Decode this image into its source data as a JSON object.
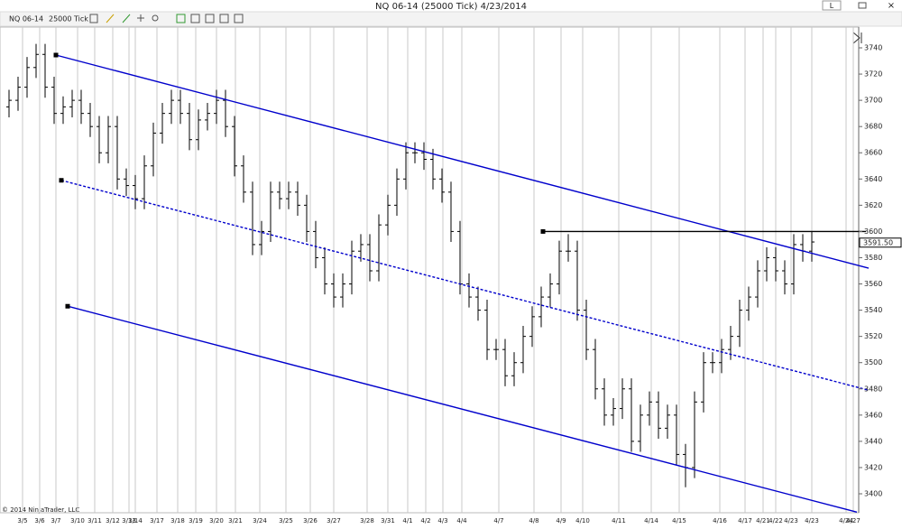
{
  "window": {
    "title": "NQ 06-14 (25000 Tick)  4/23/2014",
    "button": "L"
  },
  "toolbar": {
    "instrument": "NQ 06-14",
    "interval": "25000 Tick"
  },
  "copyright": "© 2014 NinjaTrader, LLC",
  "chart_data": {
    "type": "ohlc",
    "color": "#000000",
    "grid": true,
    "xlim": [
      -1,
      94.2
    ],
    "ylim": [
      3385.55,
      3755.83
    ],
    "yticks": [
      3400,
      3420,
      3440,
      3460,
      3480,
      3500,
      3520,
      3540,
      3560,
      3580,
      3600,
      3620,
      3640,
      3660,
      3680,
      3700,
      3720,
      3740
    ],
    "xticks": [
      {
        "value": 1.5,
        "label": "3/5"
      },
      {
        "value": 3.4,
        "label": "3/6"
      },
      {
        "value": 5.2,
        "label": "3/7"
      },
      {
        "value": 7.6,
        "label": "3/10"
      },
      {
        "value": 9.5,
        "label": "3/11"
      },
      {
        "value": 11.5,
        "label": "3/12"
      },
      {
        "value": 13.3,
        "label": "3/13"
      },
      {
        "value": 14,
        "label": "3/14"
      },
      {
        "value": 16.4,
        "label": "3/17"
      },
      {
        "value": 18.7,
        "label": "3/18"
      },
      {
        "value": 20.7,
        "label": "3/19"
      },
      {
        "value": 23,
        "label": "3/20"
      },
      {
        "value": 25.1,
        "label": "3/21"
      },
      {
        "value": 27.8,
        "label": "3/24"
      },
      {
        "value": 30.7,
        "label": "3/25"
      },
      {
        "value": 33.4,
        "label": "3/26"
      },
      {
        "value": 36,
        "label": "3/27"
      },
      {
        "value": 39.7,
        "label": "3/28"
      },
      {
        "value": 42,
        "label": "3/31"
      },
      {
        "value": 44.2,
        "label": "4/1"
      },
      {
        "value": 46.2,
        "label": "4/2"
      },
      {
        "value": 48.1,
        "label": "4/3"
      },
      {
        "value": 50.2,
        "label": "4/4"
      },
      {
        "value": 54.3,
        "label": "4/7"
      },
      {
        "value": 58.2,
        "label": "4/8"
      },
      {
        "value": 61.2,
        "label": "4/9"
      },
      {
        "value": 63.6,
        "label": "4/10"
      },
      {
        "value": 67.6,
        "label": "4/11"
      },
      {
        "value": 71.2,
        "label": "4/14"
      },
      {
        "value": 74.3,
        "label": "4/15"
      },
      {
        "value": 78.8,
        "label": "4/16"
      },
      {
        "value": 81.6,
        "label": "4/17"
      },
      {
        "value": 83.6,
        "label": "4/21"
      },
      {
        "value": 85,
        "label": "4/22"
      },
      {
        "value": 86.7,
        "label": "4/23"
      },
      {
        "value": 89,
        "label": "4/23"
      },
      {
        "value": 92.8,
        "label": "4/24"
      },
      {
        "value": 93.6,
        "label": "4/27"
      }
    ],
    "last_price": {
      "value": 3591.5,
      "label": "3591.50"
    },
    "lines": [
      {
        "color": "#0000cc",
        "dashed": false,
        "points": [
          [
            5.2,
            3734.5
          ],
          [
            95.3,
            3572
          ]
        ]
      },
      {
        "color": "#0000cc",
        "dashed": true,
        "points": [
          [
            5.8,
            3639
          ],
          [
            95.3,
            3479
          ]
        ]
      },
      {
        "color": "#0000cc",
        "dashed": false,
        "points": [
          [
            6.5,
            3543
          ],
          [
            94,
            3386
          ]
        ]
      },
      {
        "color": "#000000",
        "dashed": false,
        "points": [
          [
            59.2,
            3600
          ],
          [
            95,
            3600
          ]
        ]
      }
    ],
    "bars": [
      [
        3695,
        3708,
        3687,
        3700
      ],
      [
        3700,
        3718,
        3692,
        3710
      ],
      [
        3710,
        3733,
        3702,
        3725
      ],
      [
        3725,
        3743,
        3717,
        3735
      ],
      [
        3735,
        3743,
        3702,
        3710
      ],
      [
        3710,
        3718,
        3682,
        3690
      ],
      [
        3690,
        3703,
        3682,
        3695
      ],
      [
        3695,
        3708,
        3687,
        3700
      ],
      [
        3700,
        3708,
        3682,
        3690
      ],
      [
        3690,
        3698,
        3672,
        3680
      ],
      [
        3680,
        3688,
        3652,
        3660
      ],
      [
        3660,
        3688,
        3652,
        3680
      ],
      [
        3680,
        3688,
        3632,
        3640
      ],
      [
        3640,
        3648,
        3627,
        3635
      ],
      [
        3635,
        3643,
        3617,
        3625
      ],
      [
        3625,
        3658,
        3617,
        3650
      ],
      [
        3650,
        3683,
        3642,
        3675
      ],
      [
        3675,
        3698,
        3667,
        3690
      ],
      [
        3690,
        3708,
        3682,
        3700
      ],
      [
        3700,
        3708,
        3682,
        3690
      ],
      [
        3690,
        3698,
        3662,
        3670
      ],
      [
        3670,
        3693,
        3662,
        3685
      ],
      [
        3685,
        3698,
        3677,
        3690
      ],
      [
        3690,
        3708,
        3682,
        3700
      ],
      [
        3700,
        3708,
        3672,
        3680
      ],
      [
        3680,
        3688,
        3642,
        3650
      ],
      [
        3650,
        3658,
        3622,
        3630
      ],
      [
        3630,
        3638,
        3582,
        3590
      ],
      [
        3590,
        3608,
        3582,
        3600
      ],
      [
        3600,
        3638,
        3592,
        3630
      ],
      [
        3630,
        3638,
        3617,
        3625
      ],
      [
        3625,
        3638,
        3617,
        3630
      ],
      [
        3630,
        3638,
        3612,
        3620
      ],
      [
        3620,
        3628,
        3592,
        3600
      ],
      [
        3600,
        3608,
        3572,
        3580
      ],
      [
        3580,
        3588,
        3552,
        3560
      ],
      [
        3560,
        3568,
        3542,
        3550
      ],
      [
        3550,
        3568,
        3542,
        3560
      ],
      [
        3560,
        3593,
        3552,
        3585
      ],
      [
        3585,
        3598,
        3577,
        3590
      ],
      [
        3590,
        3598,
        3562,
        3570
      ],
      [
        3570,
        3613,
        3562,
        3605
      ],
      [
        3605,
        3628,
        3597,
        3620
      ],
      [
        3620,
        3648,
        3612,
        3640
      ],
      [
        3640,
        3668,
        3632,
        3660
      ],
      [
        3660,
        3668,
        3652,
        3660
      ],
      [
        3660,
        3668,
        3647,
        3655
      ],
      [
        3655,
        3663,
        3632,
        3640
      ],
      [
        3640,
        3648,
        3622,
        3630
      ],
      [
        3630,
        3638,
        3592,
        3600
      ],
      [
        3600,
        3608,
        3552,
        3560
      ],
      [
        3560,
        3568,
        3542,
        3550
      ],
      [
        3550,
        3558,
        3532,
        3540
      ],
      [
        3540,
        3548,
        3502,
        3510
      ],
      [
        3510,
        3518,
        3502,
        3510
      ],
      [
        3510,
        3518,
        3482,
        3490
      ],
      [
        3490,
        3508,
        3482,
        3500
      ],
      [
        3500,
        3528,
        3492,
        3520
      ],
      [
        3520,
        3543,
        3512,
        3535
      ],
      [
        3535,
        3558,
        3527,
        3550
      ],
      [
        3550,
        3568,
        3542,
        3560
      ],
      [
        3560,
        3593,
        3552,
        3585
      ],
      [
        3585,
        3598,
        3577,
        3585
      ],
      [
        3585,
        3593,
        3532,
        3540
      ],
      [
        3540,
        3548,
        3502,
        3510
      ],
      [
        3510,
        3518,
        3472,
        3480
      ],
      [
        3480,
        3488,
        3452,
        3460
      ],
      [
        3460,
        3473,
        3452,
        3465
      ],
      [
        3465,
        3488,
        3457,
        3480
      ],
      [
        3480,
        3488,
        3432,
        3440
      ],
      [
        3440,
        3468,
        3432,
        3460
      ],
      [
        3460,
        3478,
        3452,
        3470
      ],
      [
        3470,
        3478,
        3442,
        3450
      ],
      [
        3450,
        3468,
        3442,
        3460
      ],
      [
        3460,
        3468,
        3422,
        3430
      ],
      [
        3430,
        3438,
        3405,
        3420
      ],
      [
        3420,
        3478,
        3412,
        3470
      ],
      [
        3470,
        3508,
        3462,
        3500
      ],
      [
        3500,
        3508,
        3492,
        3500
      ],
      [
        3500,
        3518,
        3492,
        3510
      ],
      [
        3510,
        3528,
        3502,
        3520
      ],
      [
        3520,
        3548,
        3512,
        3540
      ],
      [
        3540,
        3558,
        3532,
        3550
      ],
      [
        3550,
        3578,
        3542,
        3570
      ],
      [
        3570,
        3588,
        3562,
        3580
      ],
      [
        3580,
        3588,
        3562,
        3570
      ],
      [
        3570,
        3578,
        3552,
        3560
      ],
      [
        3560,
        3598,
        3552,
        3590
      ],
      [
        3590,
        3598,
        3577,
        3585
      ],
      [
        3585,
        3600,
        3577,
        3592
      ]
    ]
  }
}
